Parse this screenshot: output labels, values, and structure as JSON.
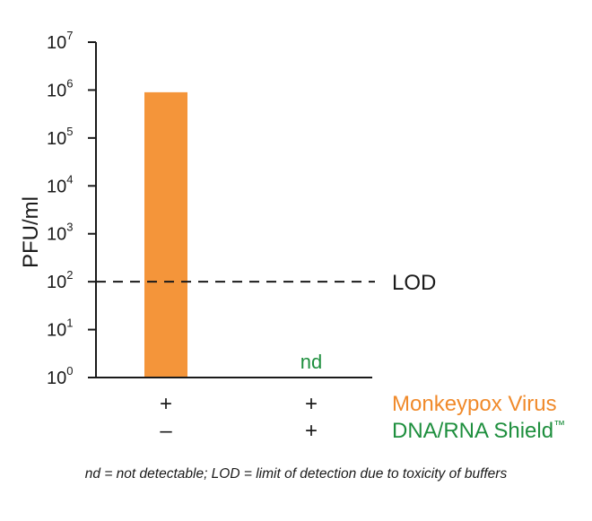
{
  "chart_data": {
    "type": "bar",
    "ylabel": "PFU/ml",
    "yscale": "log",
    "ylim": [
      1,
      10000000
    ],
    "yticks": [
      {
        "base": "10",
        "exp": "0",
        "value": 1
      },
      {
        "base": "10",
        "exp": "1",
        "value": 10
      },
      {
        "base": "10",
        "exp": "2",
        "value": 100
      },
      {
        "base": "10",
        "exp": "3",
        "value": 1000
      },
      {
        "base": "10",
        "exp": "4",
        "value": 10000
      },
      {
        "base": "10",
        "exp": "5",
        "value": 100000
      },
      {
        "base": "10",
        "exp": "6",
        "value": 1000000
      },
      {
        "base": "10",
        "exp": "7",
        "value": 10000000
      }
    ],
    "bars": [
      {
        "value": 900000,
        "color": "#F4953A",
        "label": ""
      },
      {
        "value": null,
        "color": "#F4953A",
        "label": "nd"
      }
    ],
    "reference_line": {
      "label": "LOD",
      "value": 100,
      "style": "dashed"
    },
    "condition_rows": [
      {
        "label": "Monkeypox Virus",
        "color": "#F08A2B",
        "signs": [
          "+",
          "+"
        ]
      },
      {
        "label": "DNA/RNA Shield",
        "label_suffix": "™",
        "color": "#1E8F3E",
        "signs": [
          "–",
          "+"
        ]
      }
    ],
    "nd_color": "#1E8F3E"
  },
  "footnote": "nd = not detectable; LOD = limit of detection due to toxicity of buffers"
}
